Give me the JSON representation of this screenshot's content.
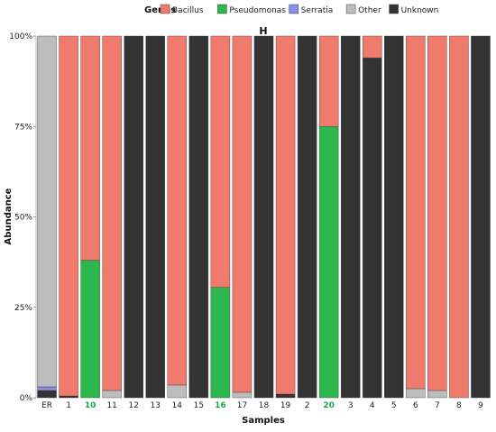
{
  "chart_data": {
    "type": "bar",
    "stacked": true,
    "panel_label": "H",
    "xlabel": "Samples",
    "ylabel": "Abundance",
    "ylim": [
      0,
      1
    ],
    "yticks": [
      {
        "value": 0,
        "label": "0%"
      },
      {
        "value": 0.25,
        "label": "25%"
      },
      {
        "value": 0.5,
        "label": "50%"
      },
      {
        "value": 0.75,
        "label": "75%"
      },
      {
        "value": 1,
        "label": "100%"
      }
    ],
    "legend": {
      "title": "Genus",
      "placement": "top",
      "items": [
        {
          "name": "Bacillus",
          "color": "#f07b6d"
        },
        {
          "name": "Pseudomonas",
          "color": "#2db84d"
        },
        {
          "name": "Serratia",
          "color": "#8d8ce6"
        },
        {
          "name": "Other",
          "color": "#bdbdbd"
        },
        {
          "name": "Unknown",
          "color": "#333333"
        }
      ]
    },
    "categories": [
      "ER",
      "1",
      "10",
      "11",
      "12",
      "13",
      "14",
      "15",
      "16",
      "17",
      "18",
      "19",
      "2",
      "20",
      "3",
      "4",
      "5",
      "6",
      "7",
      "8",
      "9"
    ],
    "highlight_color": "#1aa84a",
    "highlighted_categories": [
      "10",
      "16",
      "20"
    ],
    "series": [
      {
        "name": "Unknown",
        "values": [
          0.02,
          0.005,
          0.0,
          0.0,
          1.0,
          1.0,
          0.0,
          1.0,
          0.0,
          0.0,
          1.0,
          0.01,
          1.0,
          0.0,
          1.0,
          0.94,
          1.0,
          0.0,
          0.0,
          0.0,
          1.0
        ]
      },
      {
        "name": "Serratia",
        "values": [
          0.01,
          0.0,
          0.0,
          0.0,
          0.0,
          0.0,
          0.0,
          0.0,
          0.0,
          0.0,
          0.0,
          0.0,
          0.0,
          0.0,
          0.0,
          0.0,
          0.0,
          0.0,
          0.0,
          0.0,
          0.0
        ]
      },
      {
        "name": "Pseudomonas",
        "values": [
          0.0,
          0.0,
          0.38,
          0.0,
          0.0,
          0.0,
          0.0,
          0.0,
          0.305,
          0.0,
          0.0,
          0.0,
          0.0,
          0.75,
          0.0,
          0.0,
          0.0,
          0.0,
          0.0,
          0.0,
          0.0
        ]
      },
      {
        "name": "Other",
        "values": [
          0.97,
          0.0,
          0.0,
          0.02,
          0.0,
          0.0,
          0.035,
          0.0,
          0.0,
          0.015,
          0.0,
          0.0,
          0.0,
          0.0,
          0.0,
          0.0,
          0.0,
          0.025,
          0.02,
          0.0,
          0.0
        ]
      },
      {
        "name": "Bacillus",
        "values": [
          0.0,
          0.995,
          0.62,
          0.98,
          0.0,
          0.0,
          0.965,
          0.0,
          0.695,
          0.985,
          0.0,
          0.99,
          0.0,
          0.25,
          0.0,
          0.06,
          0.0,
          0.975,
          0.98,
          1.0,
          0.0
        ]
      }
    ]
  }
}
